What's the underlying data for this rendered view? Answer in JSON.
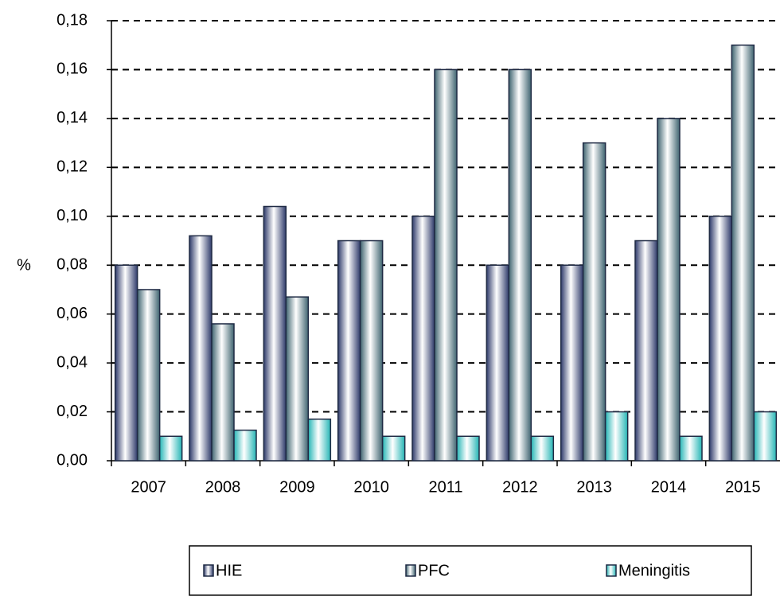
{
  "chart_data": {
    "type": "bar",
    "y_label": "%",
    "categories": [
      "2007",
      "2008",
      "2009",
      "2010",
      "2011",
      "2012",
      "2013",
      "2014",
      "2015"
    ],
    "series": [
      {
        "name": "HIE",
        "color": "#2e3a6a",
        "values": [
          0.08,
          0.092,
          0.104,
          0.09,
          0.1,
          0.08,
          0.08,
          0.09,
          0.1
        ]
      },
      {
        "name": "PFC",
        "color": "#3f6470",
        "values": [
          0.07,
          0.056,
          0.067,
          0.09,
          0.16,
          0.16,
          0.13,
          0.14,
          0.17
        ]
      },
      {
        "name": "Meningitis",
        "color": "#25b5b5",
        "values": [
          0.01,
          0.0125,
          0.017,
          0.01,
          0.01,
          0.01,
          0.02,
          0.01,
          0.02
        ]
      }
    ],
    "ylim": [
      0,
      0.18
    ],
    "yticks": [
      {
        "value": 0,
        "label": "0,00"
      },
      {
        "value": 0.02,
        "label": "0,02"
      },
      {
        "value": 0.04,
        "label": "0,04"
      },
      {
        "value": 0.06,
        "label": "0,06"
      },
      {
        "value": 0.08,
        "label": "0,08"
      },
      {
        "value": 0.1,
        "label": "0,10"
      },
      {
        "value": 0.12,
        "label": "0,12"
      },
      {
        "value": 0.14,
        "label": "0,14"
      },
      {
        "value": 0.16,
        "label": "0,16"
      },
      {
        "value": 0.18,
        "label": "0,18"
      }
    ],
    "grid": true,
    "legend": "bottom"
  }
}
